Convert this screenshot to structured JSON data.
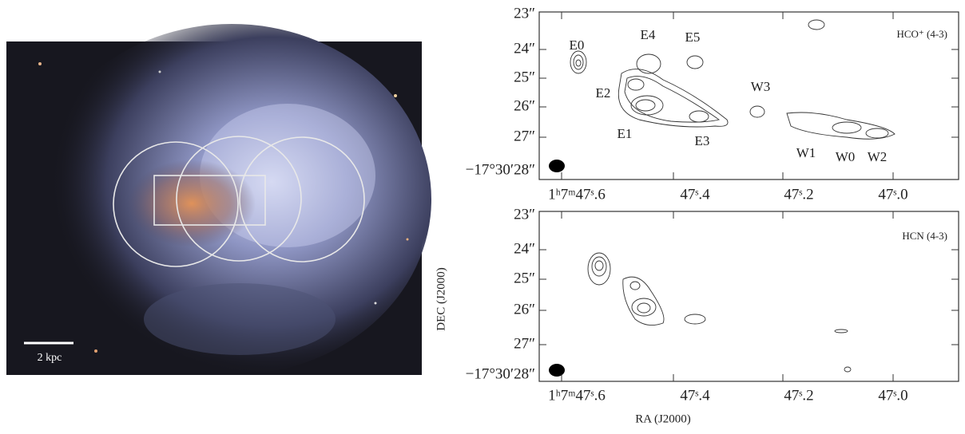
{
  "left_panel": {
    "scale_bar_label": "2 kpc"
  },
  "top_panel": {
    "label": "HCO⁺ (4-3)",
    "y_ticks": [
      "23″",
      "24″",
      "25″",
      "26″",
      "27″",
      "−17°30′28″"
    ],
    "x_ticks": [
      "1ʰ7ᵐ47ˢ.6",
      "47ˢ.4",
      "47ˢ.2",
      "47ˢ.0"
    ],
    "sources": [
      "E0",
      "E4",
      "E5",
      "E2",
      "E1",
      "E3",
      "W3",
      "W1",
      "W0",
      "W2"
    ]
  },
  "bottom_panel": {
    "label": "HCN (4-3)",
    "y_ticks": [
      "23″",
      "24″",
      "25″",
      "26″",
      "27″",
      "−17°30′28″"
    ],
    "x_ticks": [
      "1ʰ7ᵐ47ˢ.6",
      "47ˢ.4",
      "47ˢ.2",
      "47ˢ.0"
    ],
    "x_label": "RA (J2000)",
    "y_label": "DEC (J2000)"
  }
}
